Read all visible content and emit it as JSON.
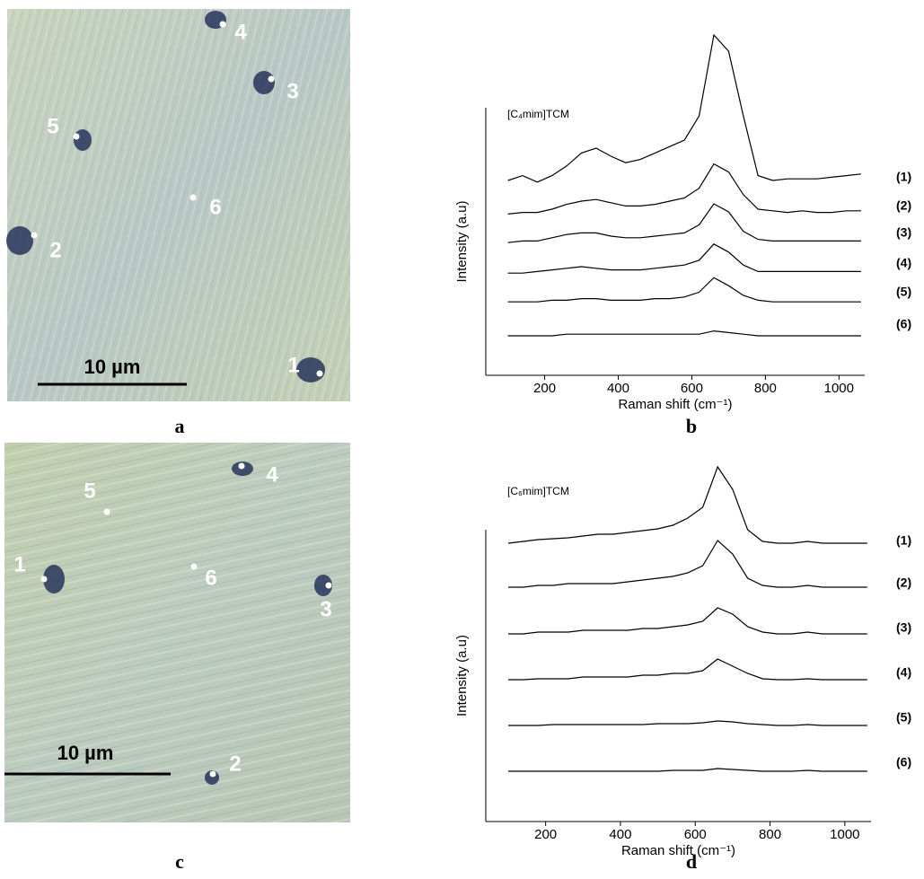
{
  "panels": [
    {
      "label": "a",
      "markers": [
        "1",
        "2",
        "3",
        "4",
        "5",
        "6"
      ],
      "scale_bar": "10 µm"
    },
    {
      "label": "b"
    },
    {
      "label": "c",
      "markers": [
        "1",
        "2",
        "3",
        "4",
        "5",
        "6"
      ],
      "scale_bar": "10 µm"
    },
    {
      "label": "d"
    }
  ],
  "chart_data": [
    {
      "type": "line",
      "title": "[C₄mim]TCM",
      "x_label": "Raman shift (cm⁻¹)",
      "y_label": "Intensity (a.u)",
      "color": "#000000",
      "xlim": [
        40,
        1070
      ],
      "xticks": [
        200,
        400,
        600,
        800,
        1000
      ],
      "x": [
        100,
        140,
        180,
        220,
        260,
        300,
        340,
        380,
        420,
        460,
        500,
        540,
        580,
        620,
        660,
        700,
        740,
        780,
        820,
        860,
        900,
        940,
        980,
        1020,
        1060
      ],
      "series": [
        {
          "name": "(1)",
          "values": [
            5,
            8,
            4,
            8,
            14,
            22,
            25,
            20,
            16,
            18,
            22,
            26,
            30,
            45,
            95,
            85,
            45,
            8,
            5,
            6,
            6,
            6,
            7,
            8,
            9
          ]
        },
        {
          "name": "(2)",
          "values": [
            2,
            3,
            3,
            5,
            8,
            10,
            11,
            9,
            7,
            7,
            8,
            10,
            12,
            18,
            33,
            28,
            14,
            5,
            4,
            3,
            4,
            3,
            3,
            4,
            4
          ]
        },
        {
          "name": "(3)",
          "values": [
            1,
            2,
            2,
            4,
            6,
            7,
            7,
            5,
            4,
            4,
            5,
            6,
            7,
            12,
            25,
            20,
            8,
            3,
            2,
            2,
            2,
            2,
            2,
            2,
            2
          ]
        },
        {
          "name": "(4)",
          "values": [
            1,
            1,
            2,
            3,
            4,
            5,
            4,
            3,
            3,
            3,
            4,
            5,
            6,
            9,
            19,
            14,
            6,
            2,
            2,
            2,
            2,
            2,
            2,
            2,
            2
          ]
        },
        {
          "name": "(5)",
          "values": [
            1,
            1,
            1,
            2,
            2,
            3,
            3,
            2,
            2,
            2,
            3,
            3,
            4,
            7,
            16,
            11,
            5,
            2,
            1,
            1,
            1,
            1,
            1,
            1,
            1
          ]
        },
        {
          "name": "(6)",
          "values": [
            0,
            0,
            0,
            0,
            1,
            1,
            1,
            1,
            1,
            1,
            1,
            1,
            1,
            1,
            3,
            2,
            1,
            0,
            0,
            0,
            0,
            0,
            0,
            0,
            0
          ]
        }
      ]
    },
    {
      "type": "line",
      "title": "[C₆mim]TCM",
      "x_label": "Raman shift (cm⁻¹)",
      "y_label": "Intensity (a.u)",
      "color": "#000000",
      "xlim": [
        40,
        1070
      ],
      "xticks": [
        200,
        400,
        600,
        800,
        1000
      ],
      "x": [
        100,
        140,
        180,
        220,
        260,
        300,
        340,
        380,
        420,
        460,
        500,
        540,
        580,
        620,
        660,
        700,
        740,
        780,
        820,
        860,
        900,
        940,
        980,
        1020,
        1060
      ],
      "series": [
        {
          "name": "(1)",
          "values": [
            10,
            12,
            14,
            15,
            16,
            18,
            20,
            20,
            22,
            24,
            26,
            30,
            38,
            50,
            95,
            70,
            25,
            12,
            10,
            10,
            12,
            10,
            10,
            10,
            10
          ]
        },
        {
          "name": "(2)",
          "values": [
            8,
            8,
            10,
            10,
            12,
            12,
            12,
            12,
            14,
            16,
            18,
            20,
            24,
            32,
            60,
            45,
            18,
            10,
            8,
            8,
            10,
            8,
            8,
            8,
            8
          ]
        },
        {
          "name": "(3)",
          "values": [
            6,
            6,
            8,
            8,
            8,
            10,
            10,
            10,
            10,
            12,
            12,
            14,
            16,
            20,
            35,
            28,
            14,
            8,
            6,
            6,
            8,
            6,
            6,
            6,
            6
          ]
        },
        {
          "name": "(4)",
          "values": [
            5,
            5,
            6,
            6,
            6,
            8,
            8,
            8,
            8,
            10,
            10,
            12,
            12,
            15,
            28,
            20,
            12,
            6,
            5,
            5,
            6,
            5,
            5,
            5,
            5
          ]
        },
        {
          "name": "(5)",
          "values": [
            4,
            4,
            4,
            5,
            5,
            5,
            5,
            5,
            5,
            5,
            6,
            6,
            6,
            7,
            9,
            8,
            6,
            5,
            4,
            4,
            5,
            4,
            4,
            4,
            4
          ]
        },
        {
          "name": "(6)",
          "values": [
            3,
            3,
            3,
            3,
            3,
            3,
            3,
            3,
            3,
            3,
            3,
            4,
            4,
            4,
            6,
            5,
            4,
            3,
            3,
            3,
            4,
            3,
            3,
            3,
            3
          ]
        }
      ]
    }
  ]
}
